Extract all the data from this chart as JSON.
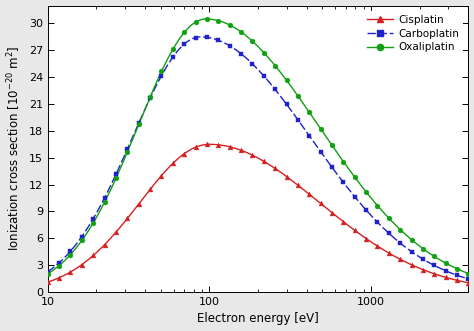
{
  "xlabel": "Electron energy [eV]",
  "ylabel_text": "Ionization cross section [10$^{-20}$ m$^2$]",
  "xmin": 10,
  "xmax": 4000,
  "ymin": 0,
  "ymax": 32,
  "yticks": [
    0,
    3,
    6,
    9,
    12,
    15,
    18,
    21,
    24,
    27,
    30
  ],
  "cisplatin_color": "#d42020",
  "carboplatin_color": "#2020cc",
  "oxaliplatin_color": "#10a010",
  "bg_color": "#ffffff",
  "fig_bg_color": "#e8e8e8",
  "legend_labels": [
    "Cisplatin",
    "Carboplatin",
    "Oxaliplatin"
  ],
  "cisp_peak_x": 100,
  "cisp_peak_y": 16.5,
  "cisp_rise": 0.43,
  "cisp_fall": 0.68,
  "carb_peak_x": 88,
  "carb_peak_y": 28.5,
  "carb_rise": 0.42,
  "carb_fall": 0.68,
  "oxal_peak_x": 95,
  "oxal_peak_y": 30.5,
  "oxal_rise": 0.42,
  "oxal_fall": 0.7,
  "n_curve": 500,
  "n_markers": 38,
  "marker_size": 3.5,
  "line_width": 1.0,
  "tick_label_size": 8,
  "axis_label_size": 8.5,
  "legend_fontsize": 7.5
}
